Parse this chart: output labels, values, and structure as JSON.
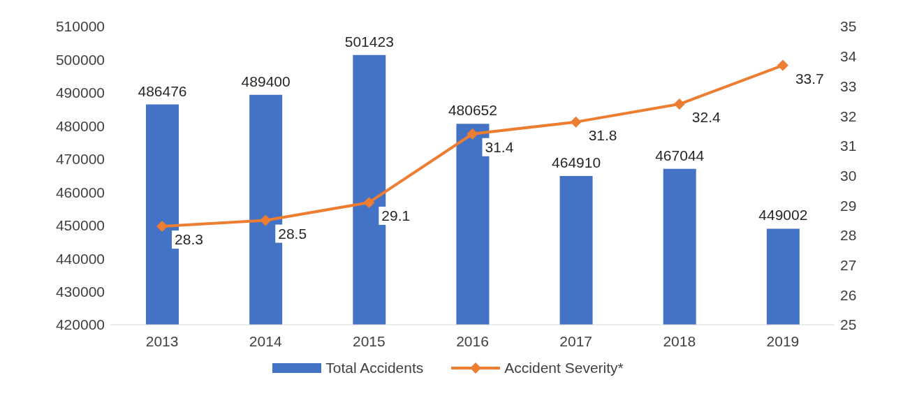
{
  "chart_data": {
    "type": "bar",
    "categories": [
      "2013",
      "2014",
      "2015",
      "2016",
      "2017",
      "2018",
      "2019"
    ],
    "series": [
      {
        "name": "Total Accidents",
        "color": "#4472c4",
        "values": [
          486476,
          489400,
          501423,
          480652,
          464910,
          467044,
          449002
        ]
      },
      {
        "name": "Accident Severity*",
        "type": "line",
        "axis": "y2",
        "color": "#ed7d31",
        "marker": "diamond",
        "values": [
          28.3,
          28.5,
          29.1,
          31.4,
          31.8,
          32.4,
          33.7
        ]
      }
    ],
    "ylim": [
      420000,
      510000
    ],
    "yticks": [
      420000,
      430000,
      440000,
      450000,
      460000,
      470000,
      480000,
      490000,
      500000,
      510000
    ],
    "y2lim": [
      25,
      35
    ],
    "y2ticks": [
      25,
      26,
      27,
      28,
      29,
      30,
      31,
      32,
      33,
      34,
      35
    ],
    "data_labels": true,
    "legend": "bottom",
    "grid": false
  }
}
